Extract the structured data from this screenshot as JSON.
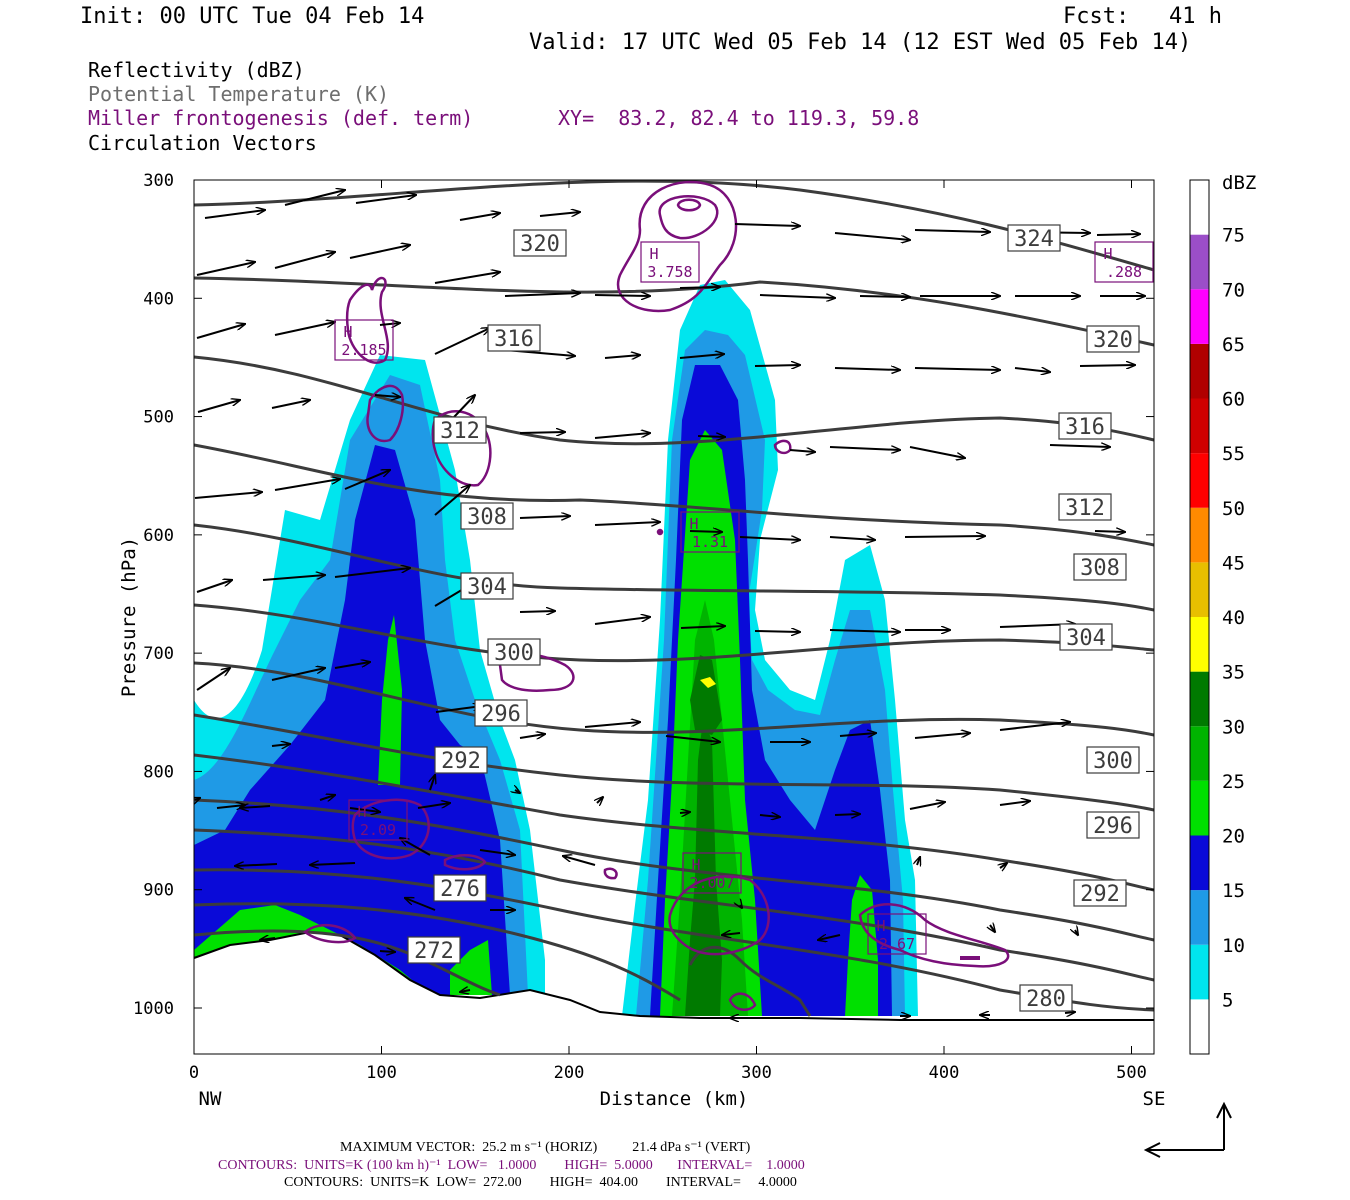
{
  "header": {
    "init": "Init: 00 UTC Tue 04 Feb 14",
    "fcst": "Fcst:   41 h",
    "valid": "Valid: 17 UTC Wed 05 Feb 14 (12 EST Wed 05 Feb 14)"
  },
  "legend_lines": {
    "reflectivity": "Reflectivity (dBZ)",
    "theta": "Potential Temperature (K)",
    "miller": "Miller frontogenesis (def. term)",
    "xy": "XY=  83.2, 82.4 to 119.3, 59.8",
    "vectors": "Circulation Vectors"
  },
  "footer": {
    "max_vector": "MAXIMUM VECTOR:  25.2 m s⁻¹ (HORIZ)          21.4 dPa s⁻¹ (VERT)",
    "contours_front": "CONTOURS:  UNITS=K (100 km h)⁻¹  LOW=   1.0000        HIGH=  5.0000       INTERVAL=    1.0000",
    "contours_theta": "CONTOURS:  UNITS=K  LOW=  272.00        HIGH=  404.00        INTERVAL=     4.0000"
  },
  "colors": {
    "theta": "#3c3c3c",
    "front": "#7a0f7a",
    "scale": [
      "#ffffff",
      "#00e5ee",
      "#1f9ae6",
      "#0a0ad8",
      "#00e000",
      "#00b400",
      "#007a00",
      "#ffff00",
      "#e8bf00",
      "#ff8a00",
      "#ff0000",
      "#d00000",
      "#b00000",
      "#ff00ff",
      "#9b4ec8"
    ]
  },
  "chart_data": {
    "type": "cross-section",
    "xlabel": "Distance (km)",
    "ylabel": "Pressure (hPa)",
    "xlim": [
      0,
      512
    ],
    "ylim": [
      1040,
      300
    ],
    "x_ticks": [
      0,
      100,
      200,
      300,
      400,
      500
    ],
    "y_ticks": [
      300,
      400,
      500,
      600,
      700,
      800,
      900,
      1000
    ],
    "x_end_labels": {
      "left": "NW",
      "right": "SE"
    },
    "colorbar": {
      "unit": "dBZ",
      "levels": [
        5,
        10,
        15,
        20,
        25,
        30,
        35,
        40,
        45,
        50,
        55,
        60,
        65,
        70,
        75
      ]
    },
    "reflectivity_cores": [
      {
        "center_km": 110,
        "top_hpa": 455,
        "max_dbz": 20
      },
      {
        "center_km": 272,
        "top_hpa": 380,
        "max_dbz": 35
      },
      {
        "center_km": 360,
        "top_hpa": 615,
        "max_dbz": 20
      }
    ],
    "theta_label_values": [
      324,
      320,
      320,
      316,
      316,
      312,
      312,
      308,
      308,
      304,
      304,
      300,
      300,
      296,
      296,
      292,
      292,
      276,
      272,
      280
    ],
    "frontogenesis_maxima": [
      {
        "label": "H",
        "value": "3.758"
      },
      {
        "label": "H",
        "value": ".288"
      },
      {
        "label": "H",
        "value": "2.185"
      },
      {
        "label": "H",
        "value": "1.31"
      },
      {
        "label": "H",
        "value": "2.09"
      },
      {
        "label": "H",
        "value": "2.007"
      },
      {
        "label": "H",
        "value": "2.67"
      }
    ],
    "max_vector": {
      "horiz_ms": 25.2,
      "vert_dpas": 21.4
    }
  }
}
